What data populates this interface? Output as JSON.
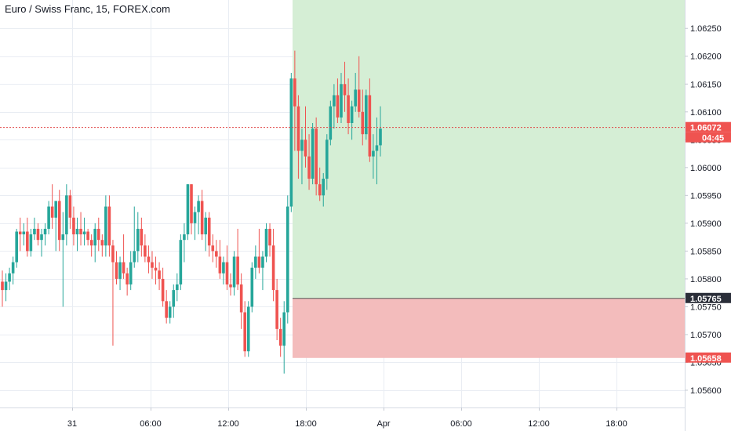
{
  "header": {
    "title": "Euro / Swiss Franc, 15, FOREX.com"
  },
  "colors": {
    "up": "#26a69a",
    "down": "#ef5350",
    "grid": "#e9edf3",
    "profit_zone": "#d5eed5",
    "loss_zone": "#f3bcbc",
    "current_price_line": "#e04545",
    "entry_line": "#555555",
    "text": "#131722"
  },
  "chart_data": {
    "type": "candlestick",
    "symbol": "EURCHF",
    "interval": "15",
    "y_ticks": [
      "1.06250",
      "1.06200",
      "1.06150",
      "1.06100",
      "1.06050",
      "1.06000",
      "1.05950",
      "1.05900",
      "1.05850",
      "1.05800",
      "1.05750",
      "1.05700",
      "1.05650",
      "1.05600"
    ],
    "x_ticks": [
      "31",
      "06:00",
      "12:00",
      "18:00",
      "Apr",
      "06:00",
      "12:00",
      "18:00"
    ],
    "ylim": [
      1.05569,
      1.06301
    ],
    "price_labels": {
      "current_price": "1.06072",
      "countdown": "04:45",
      "entry": "1.05765",
      "stop": "1.05658"
    },
    "position": {
      "type": "long",
      "entry": 1.05765,
      "target": 1.0635,
      "stop": 1.05658
    },
    "current_price": 1.06072,
    "candles": [
      [
        1.05795,
        1.05815,
        1.0575,
        1.0578
      ],
      [
        1.0578,
        1.0581,
        1.0576,
        1.05795
      ],
      [
        1.05795,
        1.0582,
        1.0578,
        1.0581
      ],
      [
        1.0581,
        1.0584,
        1.0579,
        1.0583
      ],
      [
        1.0583,
        1.0589,
        1.0582,
        1.05885
      ],
      [
        1.05885,
        1.0591,
        1.0585,
        1.0588
      ],
      [
        1.0588,
        1.059,
        1.0586,
        1.05885
      ],
      [
        1.05885,
        1.0591,
        1.0584,
        1.0585
      ],
      [
        1.0585,
        1.0589,
        1.0584,
        1.0588
      ],
      [
        1.0588,
        1.0591,
        1.0587,
        1.0589
      ],
      [
        1.0589,
        1.059,
        1.0586,
        1.0587
      ],
      [
        1.0587,
        1.0589,
        1.0584,
        1.0588
      ],
      [
        1.0588,
        1.059,
        1.0586,
        1.0589
      ],
      [
        1.0589,
        1.0594,
        1.0588,
        1.0593
      ],
      [
        1.0593,
        1.0597,
        1.0589,
        1.0591
      ],
      [
        1.0591,
        1.0594,
        1.0585,
        1.0594
      ],
      [
        1.0594,
        1.0596,
        1.0585,
        1.0587
      ],
      [
        1.0587,
        1.0592,
        1.0575,
        1.0588
      ],
      [
        1.0588,
        1.0597,
        1.0586,
        1.0595
      ],
      [
        1.0595,
        1.0596,
        1.0589,
        1.0591
      ],
      [
        1.0591,
        1.0593,
        1.0586,
        1.0588
      ],
      [
        1.0588,
        1.0591,
        1.0585,
        1.0589
      ],
      [
        1.0589,
        1.0592,
        1.0586,
        1.0588
      ],
      [
        1.0588,
        1.0591,
        1.0586,
        1.05885
      ],
      [
        1.05885,
        1.0589,
        1.0586,
        1.0587
      ],
      [
        1.0587,
        1.0588,
        1.0584,
        1.0586
      ],
      [
        1.0586,
        1.059,
        1.0583,
        1.0589
      ],
      [
        1.0589,
        1.0591,
        1.0585,
        1.0587
      ],
      [
        1.0587,
        1.0588,
        1.0584,
        1.0586
      ],
      [
        1.0586,
        1.0595,
        1.0584,
        1.0593
      ],
      [
        1.0593,
        1.0595,
        1.0584,
        1.0586
      ],
      [
        1.0586,
        1.0587,
        1.0568,
        1.0583
      ],
      [
        1.0583,
        1.0585,
        1.0579,
        1.058
      ],
      [
        1.058,
        1.0584,
        1.0578,
        1.0583
      ],
      [
        1.0583,
        1.0588,
        1.058,
        1.0581
      ],
      [
        1.0581,
        1.0582,
        1.0577,
        1.0579
      ],
      [
        1.0579,
        1.0585,
        1.0578,
        1.0583
      ],
      [
        1.0583,
        1.0593,
        1.0582,
        1.0585
      ],
      [
        1.0585,
        1.0592,
        1.0583,
        1.0589
      ],
      [
        1.0589,
        1.0591,
        1.0584,
        1.0586
      ],
      [
        1.0586,
        1.0588,
        1.0583,
        1.0584
      ],
      [
        1.0584,
        1.0586,
        1.0581,
        1.0583
      ],
      [
        1.0583,
        1.0585,
        1.058,
        1.0582
      ],
      [
        1.0582,
        1.0584,
        1.0579,
        1.05815
      ],
      [
        1.05815,
        1.0583,
        1.0578,
        1.058
      ],
      [
        1.058,
        1.0582,
        1.0575,
        1.0576
      ],
      [
        1.0576,
        1.0578,
        1.0572,
        1.0573
      ],
      [
        1.0573,
        1.0576,
        1.0572,
        1.0575
      ],
      [
        1.0575,
        1.0579,
        1.0573,
        1.0578
      ],
      [
        1.0578,
        1.0581,
        1.0576,
        1.0579
      ],
      [
        1.0579,
        1.0588,
        1.0578,
        1.0587
      ],
      [
        1.0587,
        1.059,
        1.0583,
        1.0588
      ],
      [
        1.0588,
        1.0597,
        1.0587,
        1.0597
      ],
      [
        1.0597,
        1.0597,
        1.0588,
        1.059
      ],
      [
        1.059,
        1.0593,
        1.0587,
        1.0592
      ],
      [
        1.0592,
        1.0595,
        1.0588,
        1.0594
      ],
      [
        1.0594,
        1.0596,
        1.0587,
        1.0588
      ],
      [
        1.0588,
        1.0592,
        1.0585,
        1.0591
      ],
      [
        1.0591,
        1.0592,
        1.0584,
        1.0586
      ],
      [
        1.0586,
        1.0588,
        1.0583,
        1.0585
      ],
      [
        1.0585,
        1.0587,
        1.0582,
        1.0584
      ],
      [
        1.0584,
        1.0587,
        1.058,
        1.0581
      ],
      [
        1.0581,
        1.0584,
        1.0579,
        1.0583
      ],
      [
        1.0583,
        1.0586,
        1.0578,
        1.0579
      ],
      [
        1.0579,
        1.0581,
        1.0577,
        1.05785
      ],
      [
        1.05785,
        1.0585,
        1.0577,
        1.0584
      ],
      [
        1.0584,
        1.0589,
        1.0578,
        1.0579
      ],
      [
        1.0579,
        1.0581,
        1.0571,
        1.0574
      ],
      [
        1.0574,
        1.0576,
        1.0566,
        1.0567
      ],
      [
        1.0567,
        1.0576,
        1.0566,
        1.0575
      ],
      [
        1.0575,
        1.0583,
        1.0574,
        1.0582
      ],
      [
        1.0582,
        1.0586,
        1.058,
        1.0584
      ],
      [
        1.0584,
        1.0589,
        1.0581,
        1.0582
      ],
      [
        1.0582,
        1.0585,
        1.0578,
        1.0584
      ],
      [
        1.0584,
        1.059,
        1.0583,
        1.0589
      ],
      [
        1.0589,
        1.059,
        1.0584,
        1.0586
      ],
      [
        1.0586,
        1.0589,
        1.0576,
        1.0578
      ],
      [
        1.0578,
        1.058,
        1.0569,
        1.0571
      ],
      [
        1.0571,
        1.0573,
        1.0566,
        1.0568
      ],
      [
        1.0568,
        1.0576,
        1.0563,
        1.0574
      ],
      [
        1.0574,
        1.0595,
        1.0572,
        1.0593
      ],
      [
        1.0593,
        1.0617,
        1.0592,
        1.0616
      ],
      [
        1.0616,
        1.0621,
        1.0603,
        1.0611
      ],
      [
        1.0611,
        1.0613,
        1.0598,
        1.0603
      ],
      [
        1.0603,
        1.0607,
        1.0597,
        1.0605
      ],
      [
        1.0605,
        1.0611,
        1.06,
        1.0602
      ],
      [
        1.0602,
        1.0606,
        1.0596,
        1.0598
      ],
      [
        1.0598,
        1.0608,
        1.0597,
        1.0607
      ],
      [
        1.0607,
        1.0609,
        1.0595,
        1.0597
      ],
      [
        1.0597,
        1.06,
        1.0594,
        1.0595
      ],
      [
        1.0595,
        1.0599,
        1.0593,
        1.0598
      ],
      [
        1.0598,
        1.0606,
        1.0596,
        1.0605
      ],
      [
        1.0605,
        1.0612,
        1.0604,
        1.0611
      ],
      [
        1.0611,
        1.0615,
        1.0607,
        1.0613
      ],
      [
        1.0613,
        1.0616,
        1.0608,
        1.0609
      ],
      [
        1.0609,
        1.0617,
        1.0608,
        1.0615
      ],
      [
        1.0615,
        1.0619,
        1.061,
        1.0613
      ],
      [
        1.0613,
        1.0616,
        1.0606,
        1.0608
      ],
      [
        1.0608,
        1.0612,
        1.0605,
        1.0611
      ],
      [
        1.0611,
        1.0617,
        1.061,
        1.0614
      ],
      [
        1.0614,
        1.062,
        1.0609,
        1.061
      ],
      [
        1.061,
        1.0614,
        1.0604,
        1.0606
      ],
      [
        1.0606,
        1.0614,
        1.0605,
        1.0613
      ],
      [
        1.0613,
        1.0616,
        1.0601,
        1.0602
      ],
      [
        1.0602,
        1.0606,
        1.0598,
        1.0603
      ],
      [
        1.0603,
        1.0609,
        1.0597,
        1.0604
      ],
      [
        1.0604,
        1.0611,
        1.0602,
        1.0607
      ]
    ]
  }
}
